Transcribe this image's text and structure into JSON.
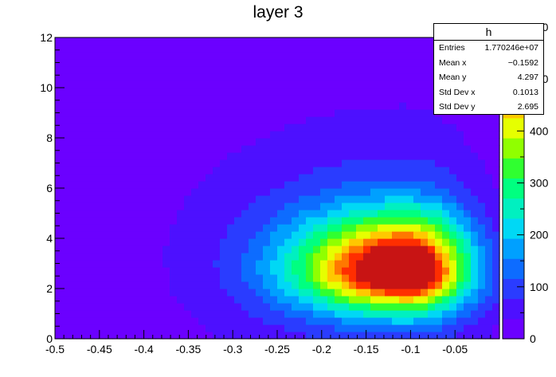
{
  "chart_data": {
    "type": "heatmap",
    "title": "layer 3",
    "xlabel": "",
    "ylabel": "",
    "xlim": [
      -0.5,
      0.0
    ],
    "ylim": [
      0,
      12
    ],
    "x_ticks": [
      "-0.5",
      "-0.45",
      "-0.4",
      "-0.35",
      "-0.3",
      "-0.25",
      "-0.2",
      "-0.15",
      "-0.1",
      "-0.05"
    ],
    "y_ticks": [
      "0",
      "2",
      "4",
      "6",
      "8",
      "10",
      "12"
    ],
    "z_ticks": [
      "0",
      "100",
      "200",
      "300",
      "400"
    ],
    "z_ticks_partial": [
      "500",
      "600"
    ],
    "zlim": [
      0,
      580
    ],
    "peak": {
      "x": -0.105,
      "y": 2.7,
      "z": 560
    },
    "stats": {
      "name": "h",
      "rows": [
        {
          "label": "Entries",
          "value": "1.770246e+07"
        },
        {
          "label": "Mean x",
          "value": "−0.1592"
        },
        {
          "label": "Mean y",
          "value": "4.297"
        },
        {
          "label": "Std Dev x",
          "value": "0.1013"
        },
        {
          "label": "Std Dev y",
          "value": "2.695"
        }
      ]
    },
    "colors": {
      "background_level": "#6b00ff",
      "palette": [
        "#6b00ff",
        "#4d10ff",
        "#2a3cff",
        "#0d6cff",
        "#00a0ff",
        "#00d8f5",
        "#00f0c0",
        "#00ff80",
        "#30ff30",
        "#90ff00",
        "#e6ff00",
        "#ffc800",
        "#ff7800",
        "#ff2e00",
        "#c81414"
      ]
    }
  }
}
